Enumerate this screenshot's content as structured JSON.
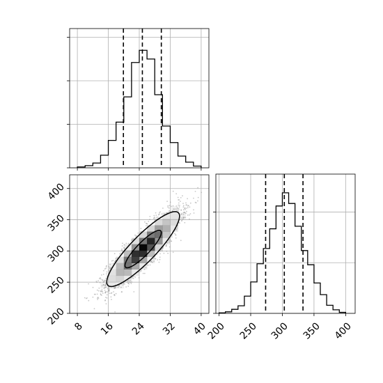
{
  "chart_data": [
    {
      "type": "bar",
      "panel": "marginal-x",
      "bin_edges": [
        8,
        10,
        12,
        14,
        16,
        18,
        20,
        22,
        24,
        26,
        28,
        30,
        32,
        34,
        36,
        38,
        40
      ],
      "values": [
        2,
        5,
        11,
        29,
        63,
        105,
        163,
        242,
        270,
        250,
        168,
        96,
        58,
        27,
        13,
        4
      ],
      "quantiles": [
        19.9,
        24.8,
        29.7
      ],
      "xlim": [
        6,
        42
      ],
      "ylim": [
        0,
        320
      ],
      "yticks": [
        0,
        100,
        200,
        300
      ],
      "grid": true
    },
    {
      "type": "bar",
      "panel": "marginal-y",
      "bin_edges": [
        200,
        210,
        220,
        230,
        240,
        250,
        260,
        270,
        280,
        290,
        300,
        310,
        320,
        330,
        340,
        350,
        360,
        370,
        380,
        390,
        400
      ],
      "values": [
        1,
        3,
        8,
        15,
        34,
        62,
        98,
        128,
        167,
        212,
        238,
        217,
        172,
        124,
        96,
        60,
        37,
        16,
        7,
        2
      ],
      "quantiles": [
        273.6,
        303.1,
        332.6
      ],
      "xlim": [
        195,
        415
      ],
      "ylim": [
        0,
        275
      ],
      "xticks": [
        200,
        250,
        300,
        350,
        400
      ],
      "yticks": [
        0,
        100,
        200
      ],
      "grid": true
    },
    {
      "type": "heatmap",
      "panel": "joint",
      "mean": [
        25,
        303
      ],
      "std": [
        4.7,
        30
      ],
      "correlation": 0.88,
      "levels": [
        0.393,
        0.865
      ],
      "sample_points": 3000,
      "xlim": [
        6,
        42
      ],
      "ylim": [
        200,
        422
      ],
      "xticks": [
        8,
        16,
        24,
        32,
        40
      ],
      "yticks": [
        200,
        250,
        300,
        350,
        400
      ],
      "grid": true
    }
  ],
  "axes": {
    "joint_x_ticks": [
      "8",
      "16",
      "24",
      "32",
      "40"
    ],
    "joint_y_ticks": [
      "200",
      "250",
      "300",
      "350",
      "400"
    ],
    "marginal_y_x_ticks": [
      "200",
      "250",
      "300",
      "350",
      "400"
    ]
  },
  "colors": {
    "line": "#000000",
    "grid": "#b0b0b0",
    "scatter": "#9a9a9a",
    "density_high": "#000000",
    "density_low": "#ffffff"
  }
}
